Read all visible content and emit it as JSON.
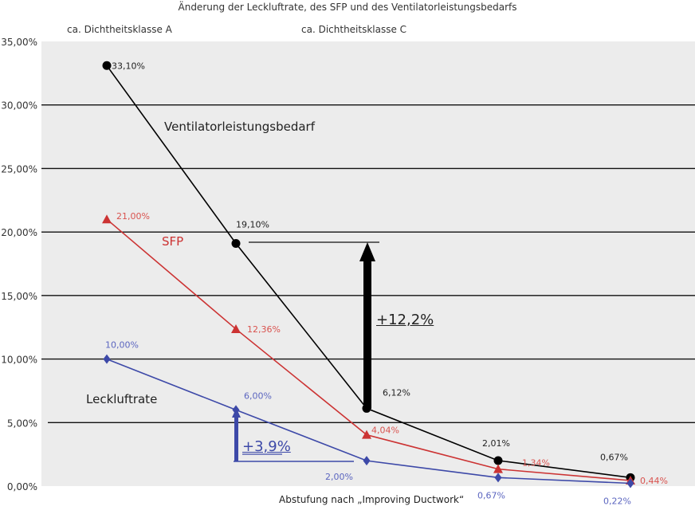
{
  "chart_data": {
    "type": "line",
    "title": "Änderung der Leckluftrate, des SFP und des Ventilatorleistungsbedarfs",
    "xlabel": "Abstufung nach „Improving Ductwork“",
    "ylabel": "",
    "ylim": [
      0,
      35
    ],
    "y_ticks": [
      "0,00%",
      "5,00%",
      "10,00%",
      "15,00%",
      "20,00%",
      "25,00%",
      "30,00%",
      "35,00%"
    ],
    "grid": true,
    "x": [
      1,
      2,
      3,
      4,
      5
    ],
    "series": [
      {
        "name": "Ventilatorleistungsbedarf",
        "color": "#000000",
        "marker": "circle",
        "values": [
          33.1,
          19.1,
          6.12,
          2.01,
          0.67
        ],
        "labels": [
          "33,10%",
          "19,10%",
          "6,12%",
          "2,01%",
          "0,67%"
        ]
      },
      {
        "name": "SFP",
        "color": "#cc3333",
        "marker": "triangle",
        "values": [
          21.0,
          12.36,
          4.04,
          1.34,
          0.44
        ],
        "labels": [
          "21,00%",
          "12,36%",
          "4,04%",
          "1,34%",
          "0,44%"
        ]
      },
      {
        "name": "Leckluftrate",
        "color": "#3d49a8",
        "marker": "diamond",
        "values": [
          10.0,
          6.0,
          2.0,
          0.67,
          0.22
        ],
        "labels": [
          "10,00%",
          "6,00%",
          "2,00%",
          "0,67%",
          "0,22%"
        ]
      }
    ],
    "annotations": {
      "class_a": "ca. Dichtheitsklasse A",
      "class_c": "ca. Dichtheitsklasse C",
      "delta_fan": "+12,2%",
      "delta_leak": "+3,9%"
    }
  }
}
